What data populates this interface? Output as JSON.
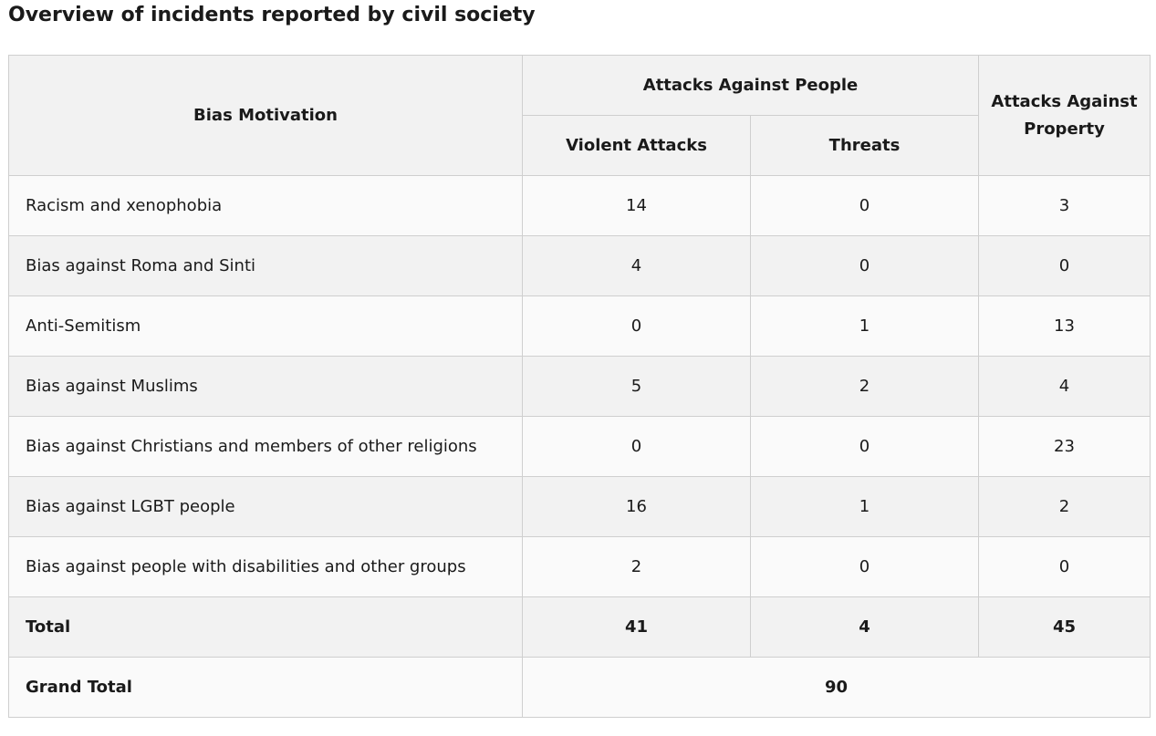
{
  "title": "Overview of incidents reported by civil society",
  "table": {
    "headers": {
      "bias": "Bias Motivation",
      "people_group": "Attacks Against People",
      "violent": "Violent Attacks",
      "threats": "Threats",
      "property": "Attacks Against Property"
    },
    "rows": [
      {
        "label": "Racism and xenophobia",
        "violent": "14",
        "threats": "0",
        "property": "3"
      },
      {
        "label": "Bias against Roma and Sinti",
        "violent": "4",
        "threats": "0",
        "property": "0"
      },
      {
        "label": "Anti-Semitism",
        "violent": "0",
        "threats": "1",
        "property": "13"
      },
      {
        "label": "Bias against Muslims",
        "violent": "5",
        "threats": "2",
        "property": "4"
      },
      {
        "label": "Bias against Christians and members of other religions",
        "violent": "0",
        "threats": "0",
        "property": "23"
      },
      {
        "label": "Bias against LGBT people",
        "violent": "16",
        "threats": "1",
        "property": "2"
      },
      {
        "label": "Bias against people with disabilities and other groups",
        "violent": "2",
        "threats": "0",
        "property": "0"
      }
    ],
    "total": {
      "label": "Total",
      "violent": "41",
      "threats": "4",
      "property": "45"
    },
    "grand_total": {
      "label": "Grand Total",
      "value": "90"
    }
  }
}
